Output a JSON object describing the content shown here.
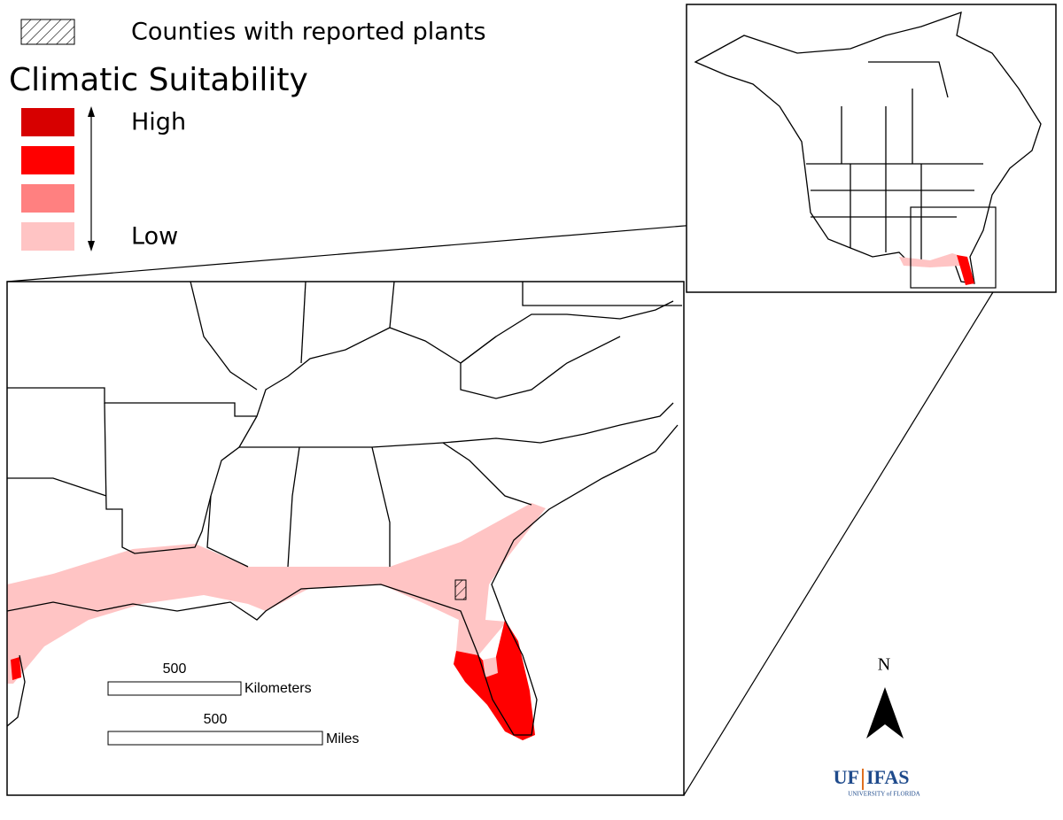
{
  "legend": {
    "hatch_label": "Counties with reported plants",
    "title": "Climatic Suitability",
    "high": "High",
    "low": "Low",
    "classes": [
      {
        "color": "#d70000"
      },
      {
        "color": "#ff0000"
      },
      {
        "color": "#ff8080"
      },
      {
        "color": "#ffc4c4"
      }
    ]
  },
  "scale_bar": {
    "km_value": "500",
    "km_unit": "Kilometers",
    "mi_value": "500",
    "mi_unit": "Miles"
  },
  "north_arrow": "N",
  "logo": {
    "uf": "UF",
    "ifas": "IFAS",
    "university": "UNIVERSITY of FLORIDA"
  }
}
